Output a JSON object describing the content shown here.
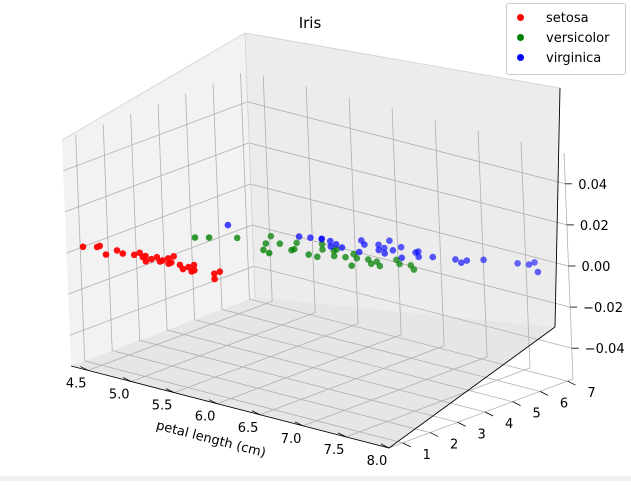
{
  "chart_data": {
    "type": "scatter",
    "projection": "3d",
    "title": "Iris",
    "xlabel": "petal length (cm)",
    "ylabel": "",
    "zlabel": "",
    "xlim": [
      4.3,
      8.0
    ],
    "ylim": [
      0.5,
      7.2
    ],
    "zlim": [
      -0.055,
      0.055
    ],
    "x_ticks": [
      "4.5",
      "5.0",
      "5.5",
      "6.0",
      "6.5",
      "7.0",
      "7.5",
      "8.0"
    ],
    "y_ticks": [
      "1",
      "2",
      "3",
      "4",
      "5",
      "6",
      "7"
    ],
    "z_ticks": [
      "−0.04",
      "−0.02",
      "0.00",
      "0.02",
      "0.04"
    ],
    "grid": true,
    "legend_position": "top-right",
    "series": [
      {
        "name": "setosa",
        "color": "#ff0000",
        "points": [
          [
            4.3,
            1.1,
            0
          ],
          [
            4.4,
            1.3,
            0
          ],
          [
            4.4,
            1.4,
            0
          ],
          [
            4.6,
            1.4,
            0
          ],
          [
            4.6,
            1.0,
            0
          ],
          [
            4.7,
            1.3,
            0
          ],
          [
            4.8,
            1.4,
            0
          ],
          [
            4.8,
            1.6,
            0
          ],
          [
            4.9,
            1.4,
            0
          ],
          [
            4.9,
            1.5,
            0
          ],
          [
            5.0,
            1.4,
            0
          ],
          [
            5.0,
            1.6,
            0
          ],
          [
            5.0,
            1.2,
            0
          ],
          [
            5.1,
            1.4,
            0
          ],
          [
            5.1,
            1.5,
            0
          ],
          [
            5.1,
            1.7,
            0
          ],
          [
            5.1,
            1.9,
            0
          ],
          [
            5.2,
            1.5,
            0
          ],
          [
            5.2,
            1.4,
            0
          ],
          [
            5.3,
            1.5,
            0
          ],
          [
            5.4,
            1.7,
            0
          ],
          [
            5.4,
            1.5,
            0
          ],
          [
            5.4,
            1.3,
            0
          ],
          [
            5.5,
            1.4,
            0
          ],
          [
            5.5,
            1.3,
            0
          ],
          [
            5.7,
            1.5,
            0
          ],
          [
            5.7,
            1.7,
            0
          ],
          [
            5.8,
            1.2,
            0
          ]
        ]
      },
      {
        "name": "versicolor",
        "color": "#008000",
        "points": [
          [
            4.9,
            3.3,
            0
          ],
          [
            5.0,
            3.5,
            0
          ],
          [
            5.2,
            3.9,
            0
          ],
          [
            5.5,
            4.0,
            0
          ],
          [
            5.6,
            3.6,
            0
          ],
          [
            5.6,
            4.2,
            0
          ],
          [
            5.7,
            3.5,
            0
          ],
          [
            5.7,
            4.5,
            0
          ],
          [
            5.8,
            4.0,
            0
          ],
          [
            5.8,
            4.1,
            0
          ],
          [
            5.9,
            4.8,
            0
          ],
          [
            6.0,
            4.5,
            0
          ],
          [
            6.0,
            4.0,
            0
          ],
          [
            6.1,
            4.7,
            0
          ],
          [
            6.1,
            4.0,
            0
          ],
          [
            6.2,
            4.3,
            0
          ],
          [
            6.3,
            4.7,
            0
          ],
          [
            6.3,
            4.4,
            0
          ],
          [
            6.4,
            4.5,
            0
          ],
          [
            6.5,
            4.6,
            0
          ],
          [
            6.6,
            4.4,
            0
          ],
          [
            6.6,
            4.6,
            0
          ],
          [
            6.7,
            4.4,
            0
          ],
          [
            6.7,
            5.0,
            0
          ],
          [
            6.8,
            4.8,
            0
          ],
          [
            6.9,
            4.9,
            0
          ],
          [
            7.0,
            4.7,
            0
          ],
          [
            5.4,
            4.5,
            0
          ],
          [
            6.1,
            4.6,
            0
          ],
          [
            6.5,
            4.0,
            0
          ]
        ]
      },
      {
        "name": "virginica",
        "color": "#0000ff",
        "points": [
          [
            4.9,
            4.5,
            0
          ],
          [
            5.6,
            4.9,
            0
          ],
          [
            5.7,
            5.0,
            0
          ],
          [
            5.8,
            5.1,
            0
          ],
          [
            5.8,
            5.1,
            0
          ],
          [
            5.9,
            5.1,
            0
          ],
          [
            6.0,
            5.0,
            0
          ],
          [
            6.0,
            4.8,
            0
          ],
          [
            6.1,
            4.9,
            0
          ],
          [
            6.1,
            5.6,
            0
          ],
          [
            6.2,
            5.4,
            0
          ],
          [
            6.3,
            5.6,
            0
          ],
          [
            6.3,
            6.0,
            0
          ],
          [
            6.3,
            4.9,
            0
          ],
          [
            6.4,
            5.3,
            0
          ],
          [
            6.4,
            5.5,
            0
          ],
          [
            6.5,
            5.2,
            0
          ],
          [
            6.5,
            5.5,
            0
          ],
          [
            6.5,
            5.8,
            0
          ],
          [
            6.7,
            5.7,
            0
          ],
          [
            6.7,
            5.8,
            0
          ],
          [
            6.7,
            5.2,
            0
          ],
          [
            6.8,
            5.5,
            0
          ],
          [
            6.9,
            5.7,
            0
          ],
          [
            7.1,
            5.9,
            0
          ],
          [
            7.2,
            6.0,
            0
          ],
          [
            7.2,
            5.8,
            0
          ],
          [
            7.3,
            6.3,
            0
          ],
          [
            7.6,
            6.6,
            0
          ],
          [
            7.7,
            6.7,
            0
          ],
          [
            7.7,
            6.9,
            0
          ],
          [
            7.9,
            6.4,
            0
          ]
        ]
      }
    ]
  }
}
